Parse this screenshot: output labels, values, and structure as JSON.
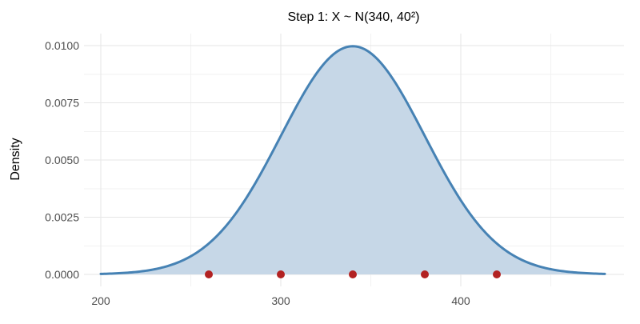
{
  "chart_data": {
    "type": "area",
    "title": "Step 1:  X ~ N(340, 40²)",
    "xlabel": "",
    "ylabel": "Density",
    "distribution": {
      "family": "normal",
      "mean": 340,
      "sd": 40
    },
    "xlim": [
      200,
      480
    ],
    "ylim": [
      0,
      0.01
    ],
    "x_ticks": [
      200,
      300,
      400
    ],
    "y_ticks": [
      0.0,
      0.0025,
      0.005,
      0.0075,
      0.01
    ],
    "y_tick_labels": [
      "0.0000",
      "0.0025",
      "0.0050",
      "0.0075",
      "0.0100"
    ],
    "points": [
      {
        "x": 260,
        "y": 0
      },
      {
        "x": 300,
        "y": 0
      },
      {
        "x": 340,
        "y": 0
      },
      {
        "x": 380,
        "y": 0
      },
      {
        "x": 420,
        "y": 0
      }
    ],
    "grid": true,
    "legend": "none",
    "colors": {
      "line": "#4682b4",
      "fill": "#c6d7e7",
      "points": "#b22222"
    }
  }
}
